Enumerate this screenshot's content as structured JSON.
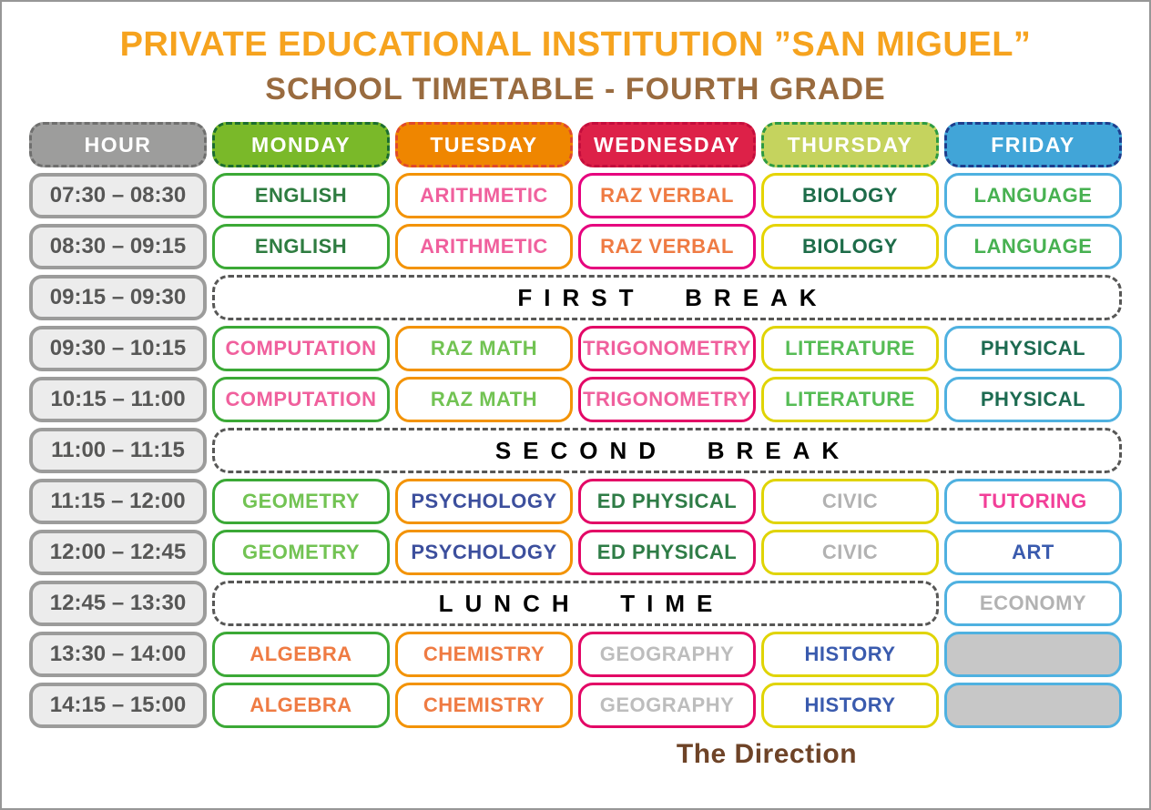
{
  "title": "PRIVATE EDUCATIONAL INSTITUTION ”SAN MIGUEL”",
  "subtitle": "SCHOOL TIMETABLE - FOURTH GRADE",
  "footer": "The Direction",
  "header": {
    "columns": [
      {
        "label": "HOUR",
        "fill": "#9D9D9C",
        "border": "#6F6F6E"
      },
      {
        "label": "MONDAY",
        "fill": "#7AB929",
        "border": "#1B6E2E"
      },
      {
        "label": "TUESDAY",
        "fill": "#EF8600",
        "border": "#E04A2A"
      },
      {
        "label": "WEDNESDAY",
        "fill": "#DD2148",
        "border": "#C40D3C"
      },
      {
        "label": "THURSDAY",
        "fill": "#C5D35E",
        "border": "#2E9B41"
      },
      {
        "label": "FRIDAY",
        "fill": "#41A5D8",
        "border": "#1C3E8E"
      }
    ]
  },
  "rows": [
    {
      "type": "subjects",
      "time": "07:30 – 08:30",
      "cells": [
        {
          "text": "ENGLISH",
          "color": "#2E7C40",
          "border": "#3BA936"
        },
        {
          "text": "ARITHMETIC",
          "color": "#F0609D",
          "border": "#F39304"
        },
        {
          "text": "RAZ VERBAL",
          "color": "#EF7B43",
          "border": "#E6007E"
        },
        {
          "text": "BIOLOGY",
          "color": "#1D6C49",
          "border": "#E5D400"
        },
        {
          "text": "LANGUAGE",
          "color": "#47B151",
          "border": "#4FB1E0"
        }
      ]
    },
    {
      "type": "subjects",
      "time": "08:30 – 09:15",
      "cells": [
        {
          "text": "ENGLISH",
          "color": "#2E7C40",
          "border": "#3BA936"
        },
        {
          "text": "ARITHMETIC",
          "color": "#F0609D",
          "border": "#F39304"
        },
        {
          "text": "RAZ VERBAL",
          "color": "#EF7B43",
          "border": "#E6007E"
        },
        {
          "text": "BIOLOGY",
          "color": "#1D6C49",
          "border": "#E5D400"
        },
        {
          "text": "LANGUAGE",
          "color": "#47B151",
          "border": "#4FB1E0"
        }
      ]
    },
    {
      "type": "break",
      "time": "09:15 – 09:30",
      "text": "FIRST BREAK",
      "span": 5,
      "cells": []
    },
    {
      "type": "subjects",
      "time": "09:30 – 10:15",
      "cells": [
        {
          "text": "COMPUTATION",
          "color": "#F0609D",
          "border": "#3BA936"
        },
        {
          "text": "RAZ MATH",
          "color": "#72C353",
          "border": "#F39304"
        },
        {
          "text": "TRIGONOMETRY",
          "color": "#F0609D",
          "border": "#E30766"
        },
        {
          "text": "LITERATURE",
          "color": "#56BC55",
          "border": "#E0D404"
        },
        {
          "text": "PHYSICAL",
          "color": "#1D6B51",
          "border": "#4FB1E0"
        }
      ]
    },
    {
      "type": "subjects",
      "time": "10:15 – 11:00",
      "cells": [
        {
          "text": "COMPUTATION",
          "color": "#F0609D",
          "border": "#3BA936"
        },
        {
          "text": "RAZ MATH",
          "color": "#72C353",
          "border": "#F39304"
        },
        {
          "text": "TRIGONOMETRY",
          "color": "#F0609D",
          "border": "#E30766"
        },
        {
          "text": "LITERATURE",
          "color": "#56BC55",
          "border": "#E0D404"
        },
        {
          "text": "PHYSICAL",
          "color": "#1D6B51",
          "border": "#4FB1E0"
        }
      ]
    },
    {
      "type": "break",
      "time": "11:00 – 11:15",
      "text": "SECOND BREAK",
      "span": 5,
      "cells": []
    },
    {
      "type": "subjects",
      "time": "11:15 – 12:00",
      "cells": [
        {
          "text": "GEOMETRY",
          "color": "#72C353",
          "border": "#3BA936"
        },
        {
          "text": "PSYCHOLOGY",
          "color": "#3C4F9D",
          "border": "#F39304"
        },
        {
          "text": "ED PHYSICAL",
          "color": "#2E7C46",
          "border": "#E30766"
        },
        {
          "text": "CIVIC",
          "color": "#B2B2B2",
          "border": "#E0D404"
        },
        {
          "text": "TUTORING",
          "color": "#F23F98",
          "border": "#4FB1E0"
        }
      ]
    },
    {
      "type": "subjects",
      "time": "12:00 – 12:45",
      "cells": [
        {
          "text": "GEOMETRY",
          "color": "#72C353",
          "border": "#3BA936"
        },
        {
          "text": "PSYCHOLOGY",
          "color": "#3C4F9D",
          "border": "#F39304"
        },
        {
          "text": "ED PHYSICAL",
          "color": "#2E7C46",
          "border": "#E30766"
        },
        {
          "text": "CIVIC",
          "color": "#B2B2B2",
          "border": "#E0D404"
        },
        {
          "text": "ART",
          "color": "#3A5BAE",
          "border": "#4FB1E0"
        }
      ]
    },
    {
      "type": "break",
      "time": "12:45 – 13:30",
      "text": "LUNCH TIME",
      "span": 4,
      "cells": [
        {
          "text": "ECONOMY",
          "color": "#B2B2B2",
          "border": "#4FB1E0"
        }
      ]
    },
    {
      "type": "subjects",
      "time": "13:30 – 14:00",
      "cells": [
        {
          "text": "ALGEBRA",
          "color": "#EF7B43",
          "border": "#3BA936"
        },
        {
          "text": "CHEMISTRY",
          "color": "#EF7B43",
          "border": "#F39304"
        },
        {
          "text": "GEOGRAPHY",
          "color": "#BDBDBD",
          "border": "#E30766"
        },
        {
          "text": "HISTORY",
          "color": "#3A5BAE",
          "border": "#E0D404"
        },
        {
          "text": "",
          "color": "#000000",
          "border": "#4FB1E0",
          "fill": "#C7C7C7"
        }
      ]
    },
    {
      "type": "subjects",
      "time": "14:15 – 15:00",
      "cells": [
        {
          "text": "ALGEBRA",
          "color": "#EF7B43",
          "border": "#3BA936"
        },
        {
          "text": "CHEMISTRY",
          "color": "#EF7B43",
          "border": "#F39304"
        },
        {
          "text": "GEOGRAPHY",
          "color": "#BDBDBD",
          "border": "#E30766"
        },
        {
          "text": "HISTORY",
          "color": "#3A5BAE",
          "border": "#E0D404"
        },
        {
          "text": "",
          "color": "#000000",
          "border": "#4FB1E0",
          "fill": "#C7C7C7"
        }
      ]
    }
  ]
}
